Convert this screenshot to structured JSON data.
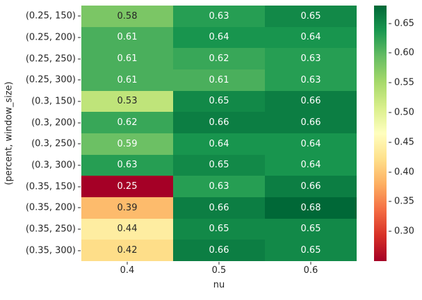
{
  "chart_data": {
    "type": "heatmap",
    "title": "",
    "xlabel": "nu",
    "ylabel": "(percent, window_size)",
    "x_tick_labels": [
      "0.4",
      "0.5",
      "0.6"
    ],
    "y_tick_labels": [
      "(0.25, 150)",
      "(0.25, 200)",
      "(0.25, 250)",
      "(0.25, 300)",
      "(0.3, 150)",
      "(0.3, 200)",
      "(0.3, 250)",
      "(0.3, 300)",
      "(0.35, 150)",
      "(0.35, 200)",
      "(0.35, 250)",
      "(0.35, 300)"
    ],
    "values": [
      [
        0.58,
        0.63,
        0.65
      ],
      [
        0.61,
        0.64,
        0.64
      ],
      [
        0.61,
        0.62,
        0.63
      ],
      [
        0.61,
        0.61,
        0.63
      ],
      [
        0.53,
        0.65,
        0.66
      ],
      [
        0.62,
        0.66,
        0.66
      ],
      [
        0.59,
        0.64,
        0.64
      ],
      [
        0.63,
        0.65,
        0.64
      ],
      [
        0.25,
        0.63,
        0.66
      ],
      [
        0.39,
        0.66,
        0.68
      ],
      [
        0.44,
        0.65,
        0.65
      ],
      [
        0.42,
        0.66,
        0.65
      ]
    ],
    "vmin": 0.25,
    "vmax": 0.68,
    "grid": false,
    "legend_position": "right",
    "colormap": {
      "name": "RdYlGn",
      "anchors": [
        "#a50026",
        "#d73027",
        "#f46d43",
        "#fdae61",
        "#fee08b",
        "#ffffbf",
        "#d9ef8b",
        "#a6d96a",
        "#66bd63",
        "#1a9850",
        "#006837"
      ]
    },
    "colorbar": {
      "tick_values": [
        0.65,
        0.6,
        0.55,
        0.5,
        0.45,
        0.4,
        0.35,
        0.3
      ],
      "tick_labels": [
        "0.65",
        "0.60",
        "0.55",
        "0.50",
        "0.45",
        "0.40",
        "0.35",
        "0.30"
      ]
    },
    "annotation_colors": {
      "dark_text": "#262626",
      "light_text": "#ffffff"
    }
  }
}
